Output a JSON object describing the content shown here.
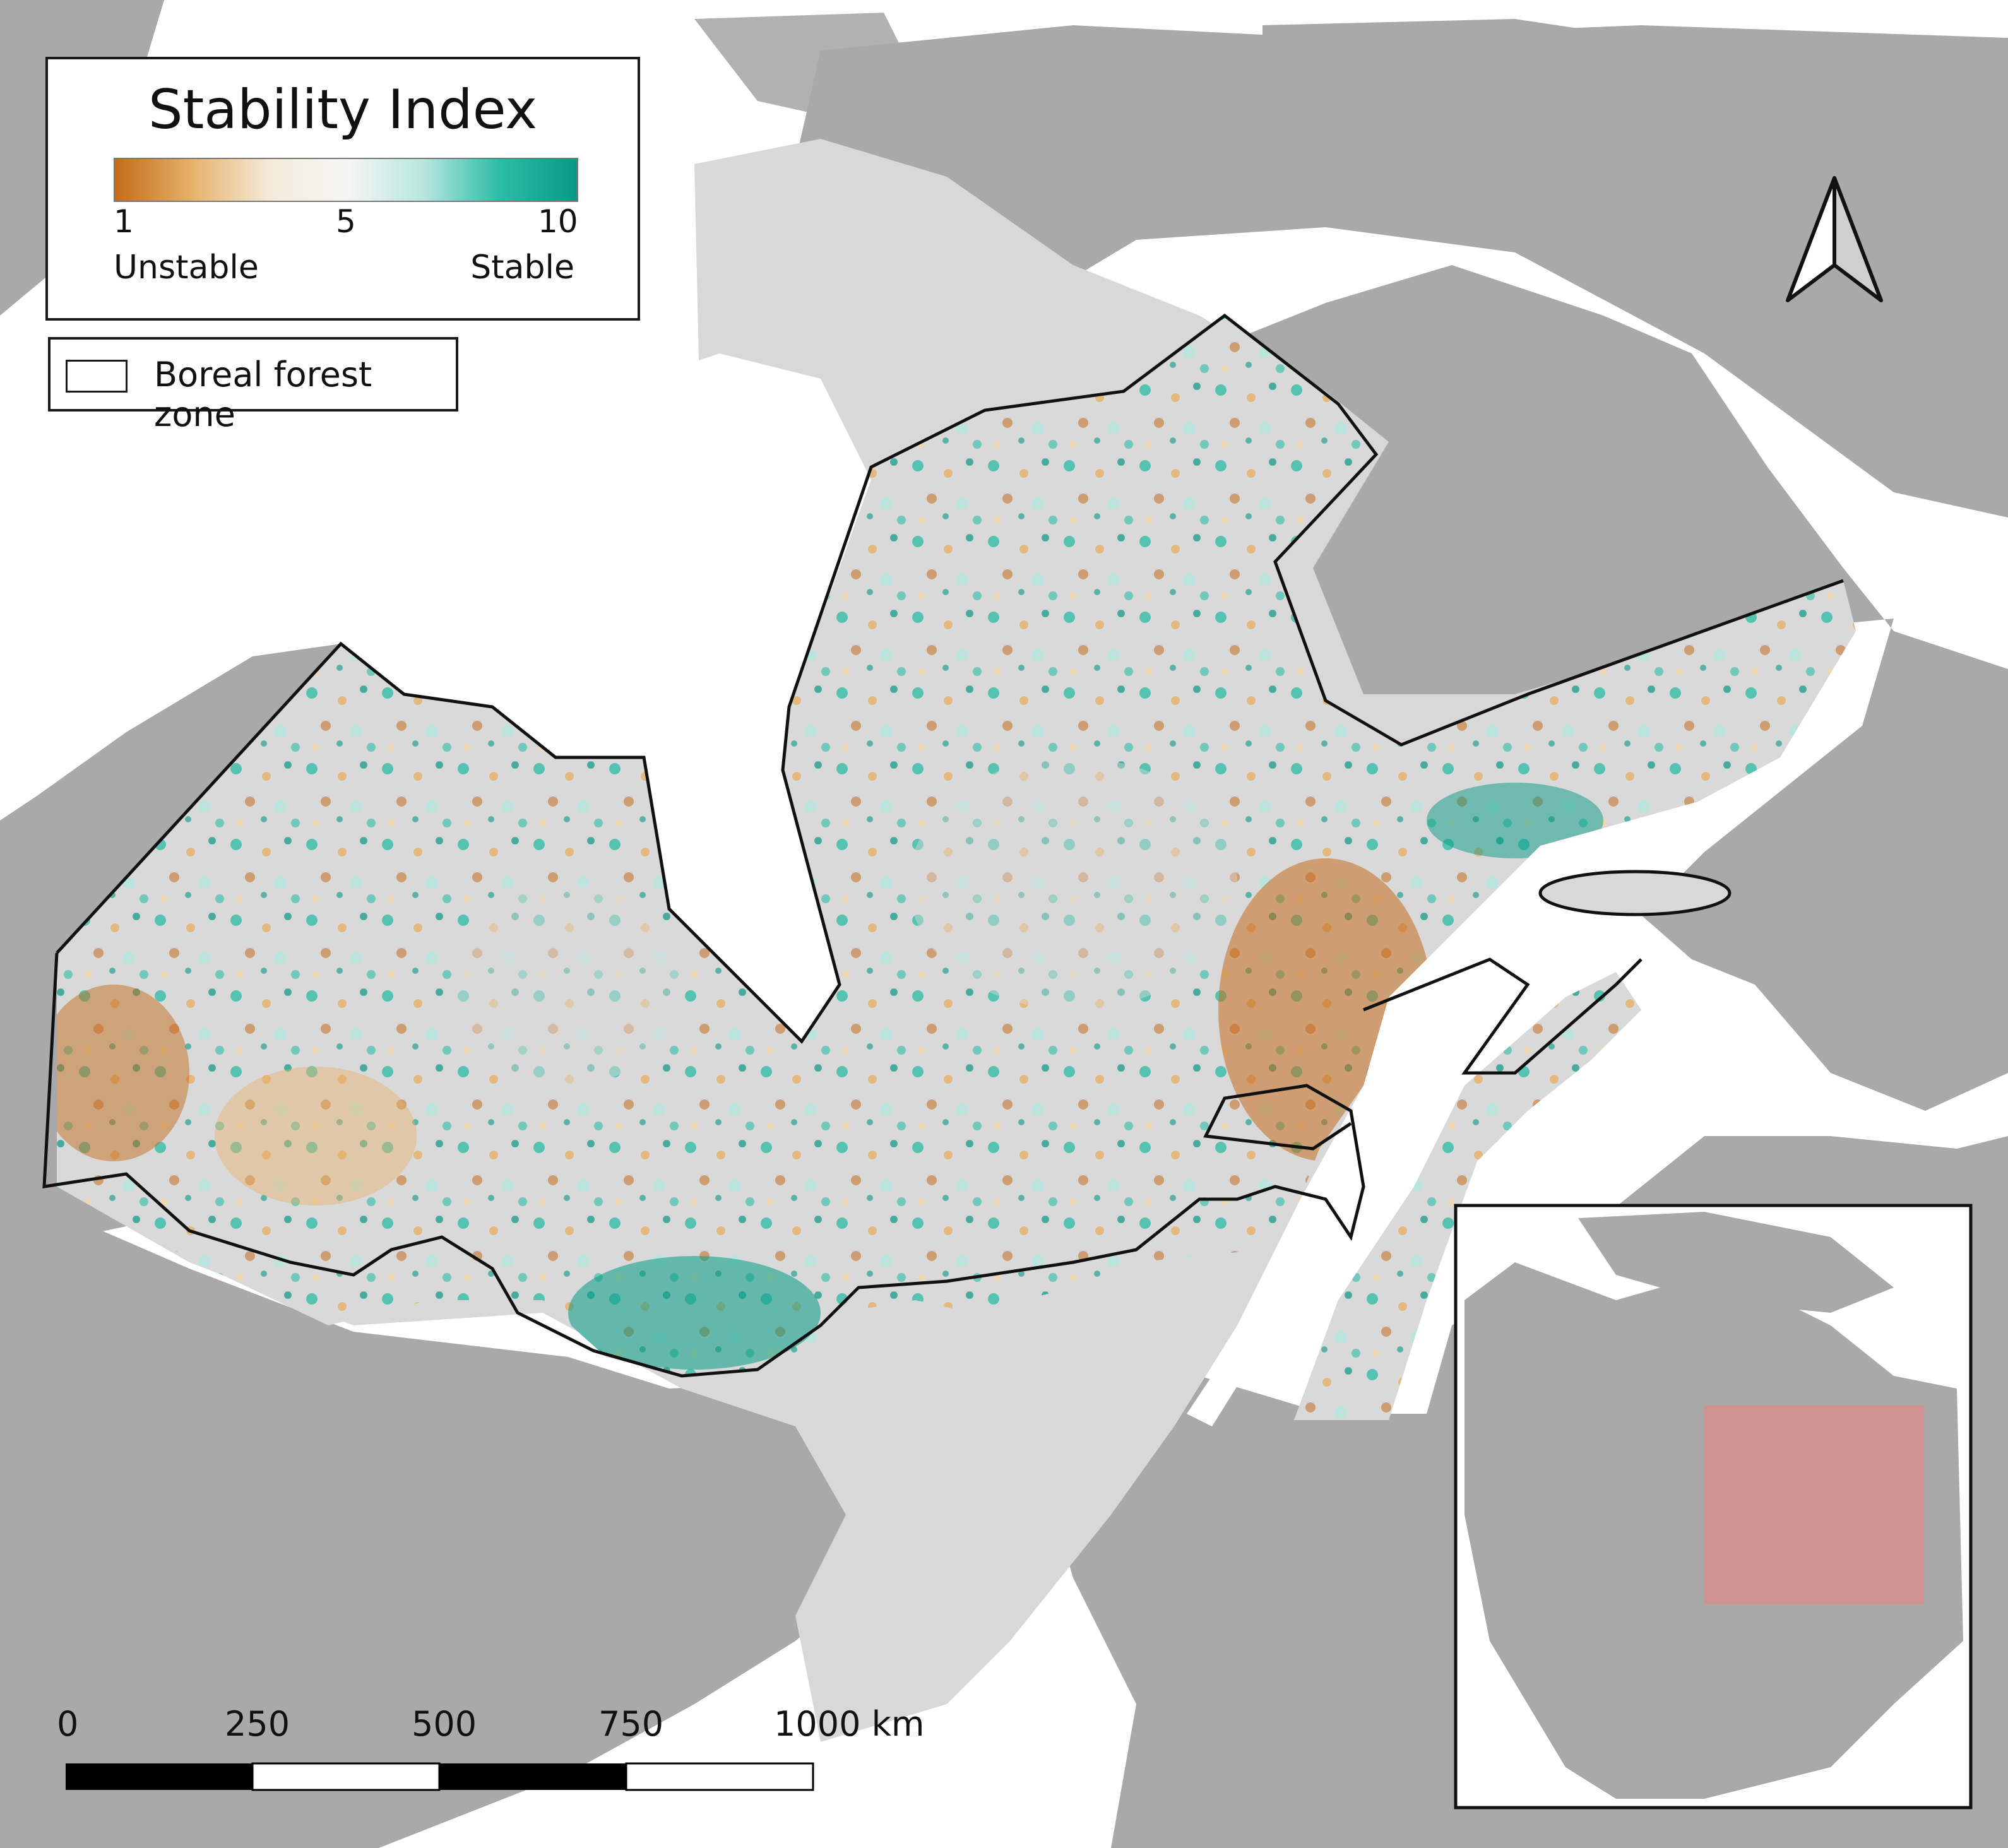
{
  "legend": {
    "title": "Stability Index",
    "ramp_colors": [
      "#c46c1b",
      "#e6b26a",
      "#f4ead9",
      "#f6f6f4",
      "#b9e6df",
      "#2cbca6",
      "#079a85"
    ],
    "ticks": [
      "1",
      "5",
      "10"
    ],
    "low_label": "Unstable",
    "high_label": "Stable"
  },
  "boreal_legend": {
    "label": "Boreal forest zone"
  },
  "scale_bar": {
    "labels": [
      "0",
      "250",
      "500",
      "750",
      "1000 km"
    ]
  },
  "north_arrow": {
    "icon": "north-arrow-icon"
  },
  "colors": {
    "water": "#ffffff",
    "land": "#a9a9a9",
    "study_region": "#d8d8d8",
    "boreal_outline": "#111111",
    "inset_highlight": "#f08080"
  }
}
